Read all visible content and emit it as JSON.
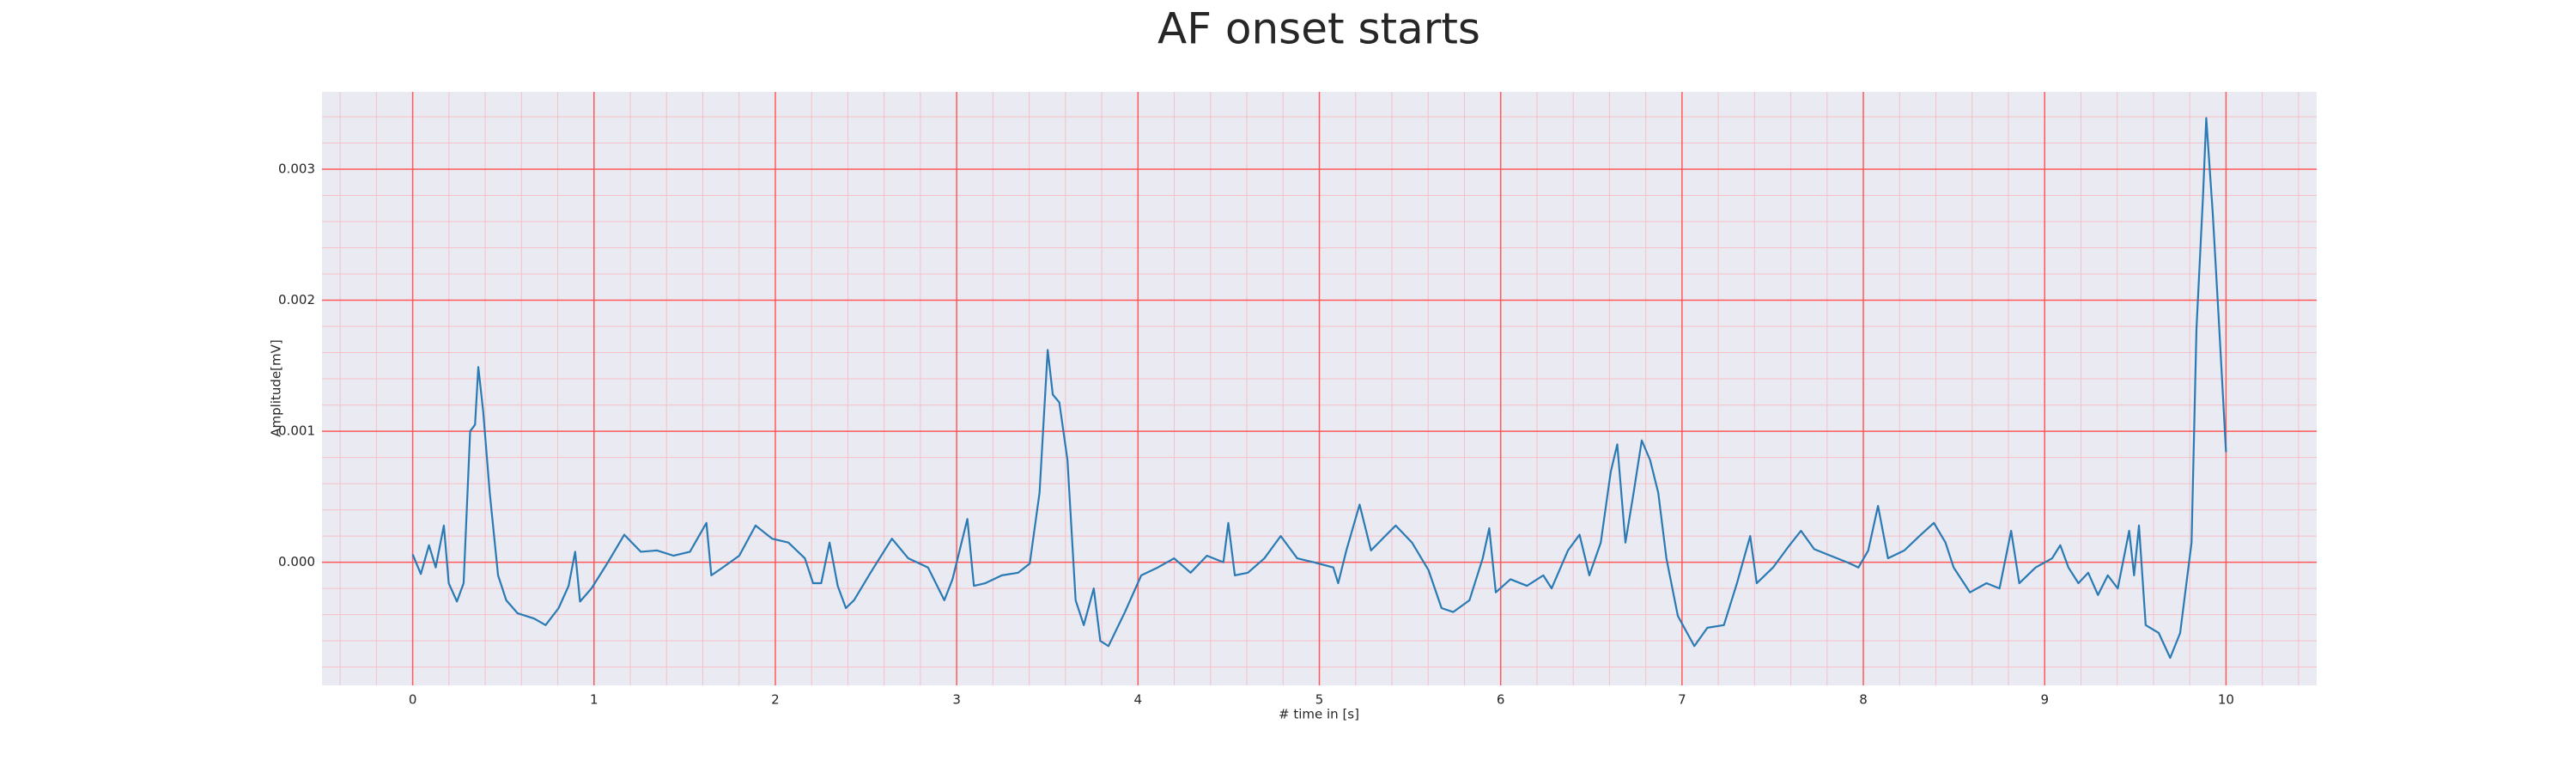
{
  "chart_data": {
    "type": "line",
    "title": "AF onset starts",
    "x_label": "# time in [s]",
    "y_label": "Amplitude[mV]",
    "x": [
      0,
      0.045,
      0.09,
      0.127,
      0.172,
      0.199,
      0.244,
      0.281,
      0.317,
      0.344,
      0.362,
      0.389,
      0.425,
      0.471,
      0.516,
      0.579,
      0.67,
      0.733,
      0.805,
      0.86,
      0.896,
      0.923,
      0.986,
      1.077,
      1.167,
      1.258,
      1.348,
      1.439,
      1.529,
      1.62,
      1.647,
      1.71,
      1.801,
      1.891,
      1.982,
      2.072,
      2.163,
      2.208,
      2.253,
      2.299,
      2.344,
      2.389,
      2.434,
      2.525,
      2.643,
      2.733,
      2.842,
      2.932,
      2.977,
      3.059,
      3.095,
      3.158,
      3.249,
      3.339,
      3.403,
      3.457,
      3.502,
      3.53,
      3.566,
      3.611,
      3.656,
      3.701,
      3.756,
      3.792,
      3.837,
      3.928,
      4.018,
      4.109,
      4.199,
      4.29,
      4.38,
      4.471,
      4.498,
      4.534,
      4.606,
      4.697,
      4.787,
      4.878,
      4.968,
      5.077,
      5.104,
      5.149,
      5.222,
      5.285,
      5.349,
      5.421,
      5.511,
      5.602,
      5.674,
      5.738,
      5.828,
      5.901,
      5.937,
      5.973,
      6.054,
      6.145,
      6.235,
      6.281,
      6.371,
      6.435,
      6.489,
      6.552,
      6.607,
      6.643,
      6.688,
      6.733,
      6.778,
      6.824,
      6.869,
      6.914,
      6.977,
      7.068,
      7.14,
      7.231,
      7.303,
      7.376,
      7.412,
      7.502,
      7.593,
      7.656,
      7.729,
      7.819,
      7.91,
      7.973,
      8.027,
      8.081,
      8.136,
      8.226,
      8.317,
      8.389,
      8.453,
      8.498,
      8.588,
      8.679,
      8.751,
      8.815,
      8.86,
      8.95,
      9.041,
      9.086,
      9.131,
      9.186,
      9.24,
      9.294,
      9.348,
      9.403,
      9.466,
      9.493,
      9.52,
      9.557,
      9.629,
      9.692,
      9.747,
      9.81,
      9.837,
      9.873,
      9.891,
      9.927,
      9.963,
      10
    ],
    "series": [
      {
        "color": "#2a7ab4",
        "values": [
          6e-05,
          -9e-05,
          0.00013,
          -4e-05,
          0.00028,
          -0.00016,
          -0.0003,
          -0.00016,
          0.001,
          0.00105,
          0.00149,
          0.00115,
          0.00053,
          -0.0001,
          -0.00029,
          -0.00039,
          -0.00043,
          -0.00048,
          -0.00035,
          -0.00018,
          8e-05,
          -0.0003,
          -0.0002,
          0,
          0.00021,
          8e-05,
          9e-05,
          5e-05,
          8e-05,
          0.0003,
          -0.0001,
          -4e-05,
          5e-05,
          0.00028,
          0.00018,
          0.00015,
          3e-05,
          -0.00016,
          -0.00016,
          0.00015,
          -0.00018,
          -0.00035,
          -0.00029,
          -8e-05,
          0.00018,
          3e-05,
          -4e-05,
          -0.00029,
          -0.00013,
          0.00033,
          -0.00018,
          -0.00016,
          -0.0001,
          -8e-05,
          -1e-05,
          0.00053,
          0.00162,
          0.00128,
          0.00122,
          0.00078,
          -0.00029,
          -0.00048,
          -0.0002,
          -0.0006,
          -0.00064,
          -0.00038,
          -0.0001,
          -4e-05,
          3e-05,
          -8e-05,
          5e-05,
          0,
          0.0003,
          -0.0001,
          -8e-05,
          3e-05,
          0.0002,
          3e-05,
          0,
          -4e-05,
          -0.00016,
          9e-05,
          0.00044,
          9e-05,
          0.00018,
          0.00028,
          0.00015,
          -6e-05,
          -0.00035,
          -0.00038,
          -0.00029,
          3e-05,
          0.00026,
          -0.00023,
          -0.00013,
          -0.00018,
          -0.0001,
          -0.0002,
          9e-05,
          0.00021,
          -0.0001,
          0.00015,
          0.00069,
          0.0009,
          0.00015,
          0.00053,
          0.00093,
          0.00078,
          0.00053,
          3e-05,
          -0.00041,
          -0.00064,
          -0.0005,
          -0.00048,
          -0.00016,
          0.0002,
          -0.00016,
          -4e-05,
          0.00013,
          0.00024,
          0.0001,
          5e-05,
          0,
          -4e-05,
          9e-05,
          0.00043,
          3e-05,
          9e-05,
          0.00021,
          0.0003,
          0.00015,
          -4e-05,
          -0.00023,
          -0.00016,
          -0.0002,
          0.00024,
          -0.00016,
          -4e-05,
          3e-05,
          0.00013,
          -4e-05,
          -0.00016,
          -8e-05,
          -0.00025,
          -0.0001,
          -0.0002,
          0.00024,
          -0.0001,
          0.00028,
          -0.00048,
          -0.00054,
          -0.00073,
          -0.00054,
          0.00015,
          0.00178,
          0.00279,
          0.00339,
          0.00266,
          0.00178,
          0.00084
        ]
      }
    ],
    "xlim": [
      -0.5,
      10.5
    ],
    "ylim": [
      -0.00094,
      0.00359
    ],
    "xticks": [
      0,
      1,
      2,
      3,
      4,
      5,
      6,
      7,
      8,
      9,
      10
    ],
    "yticks": [
      {
        "value": 0,
        "label": "0.000"
      },
      {
        "value": 0.001,
        "label": "0.001"
      },
      {
        "value": 0.002,
        "label": "0.002"
      },
      {
        "value": 0.003,
        "label": "0.003"
      }
    ],
    "grid": true,
    "grid_color": "#ff5a5a",
    "minor_grid": true,
    "minor_grid_color": "#f5c0c8",
    "background": "#eaeaf2"
  }
}
